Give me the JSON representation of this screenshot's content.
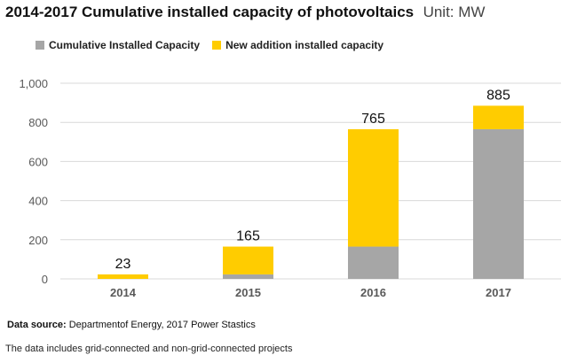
{
  "header": {
    "title": "2014-2017 Cumulative installed capacity of photovoltaics",
    "unit": "Unit: MW"
  },
  "colors": {
    "cumulative": "#a6a6a6",
    "new_addition": "#ffcc00",
    "grid": "#d9d9d9",
    "axis_text": "#595959"
  },
  "chart_data": {
    "type": "bar",
    "stacked": true,
    "categories": [
      "2014",
      "2015",
      "2016",
      "2017"
    ],
    "series": [
      {
        "name": "Cumulative Installed Capacity",
        "values": [
          0,
          23,
          165,
          765
        ]
      },
      {
        "name": "New addition installed capacity",
        "values": [
          23,
          142,
          600,
          120
        ]
      }
    ],
    "totals": [
      23,
      165,
      765,
      885
    ],
    "total_labels": [
      "23",
      "165",
      "765",
      "885"
    ],
    "y_ticks": [
      0,
      200,
      400,
      600,
      800,
      1000
    ],
    "y_tick_labels": [
      "0",
      "200",
      "400",
      "600",
      "800",
      "1,000"
    ],
    "ylim": [
      0,
      1000
    ],
    "grid": true,
    "legend_position": "top-left"
  },
  "footer": {
    "source_label": "Data source:",
    "source_text": "Departmentof Energy, 2017 Power Stastics",
    "note": "The data includes grid-connected and non-grid-connected projects"
  }
}
